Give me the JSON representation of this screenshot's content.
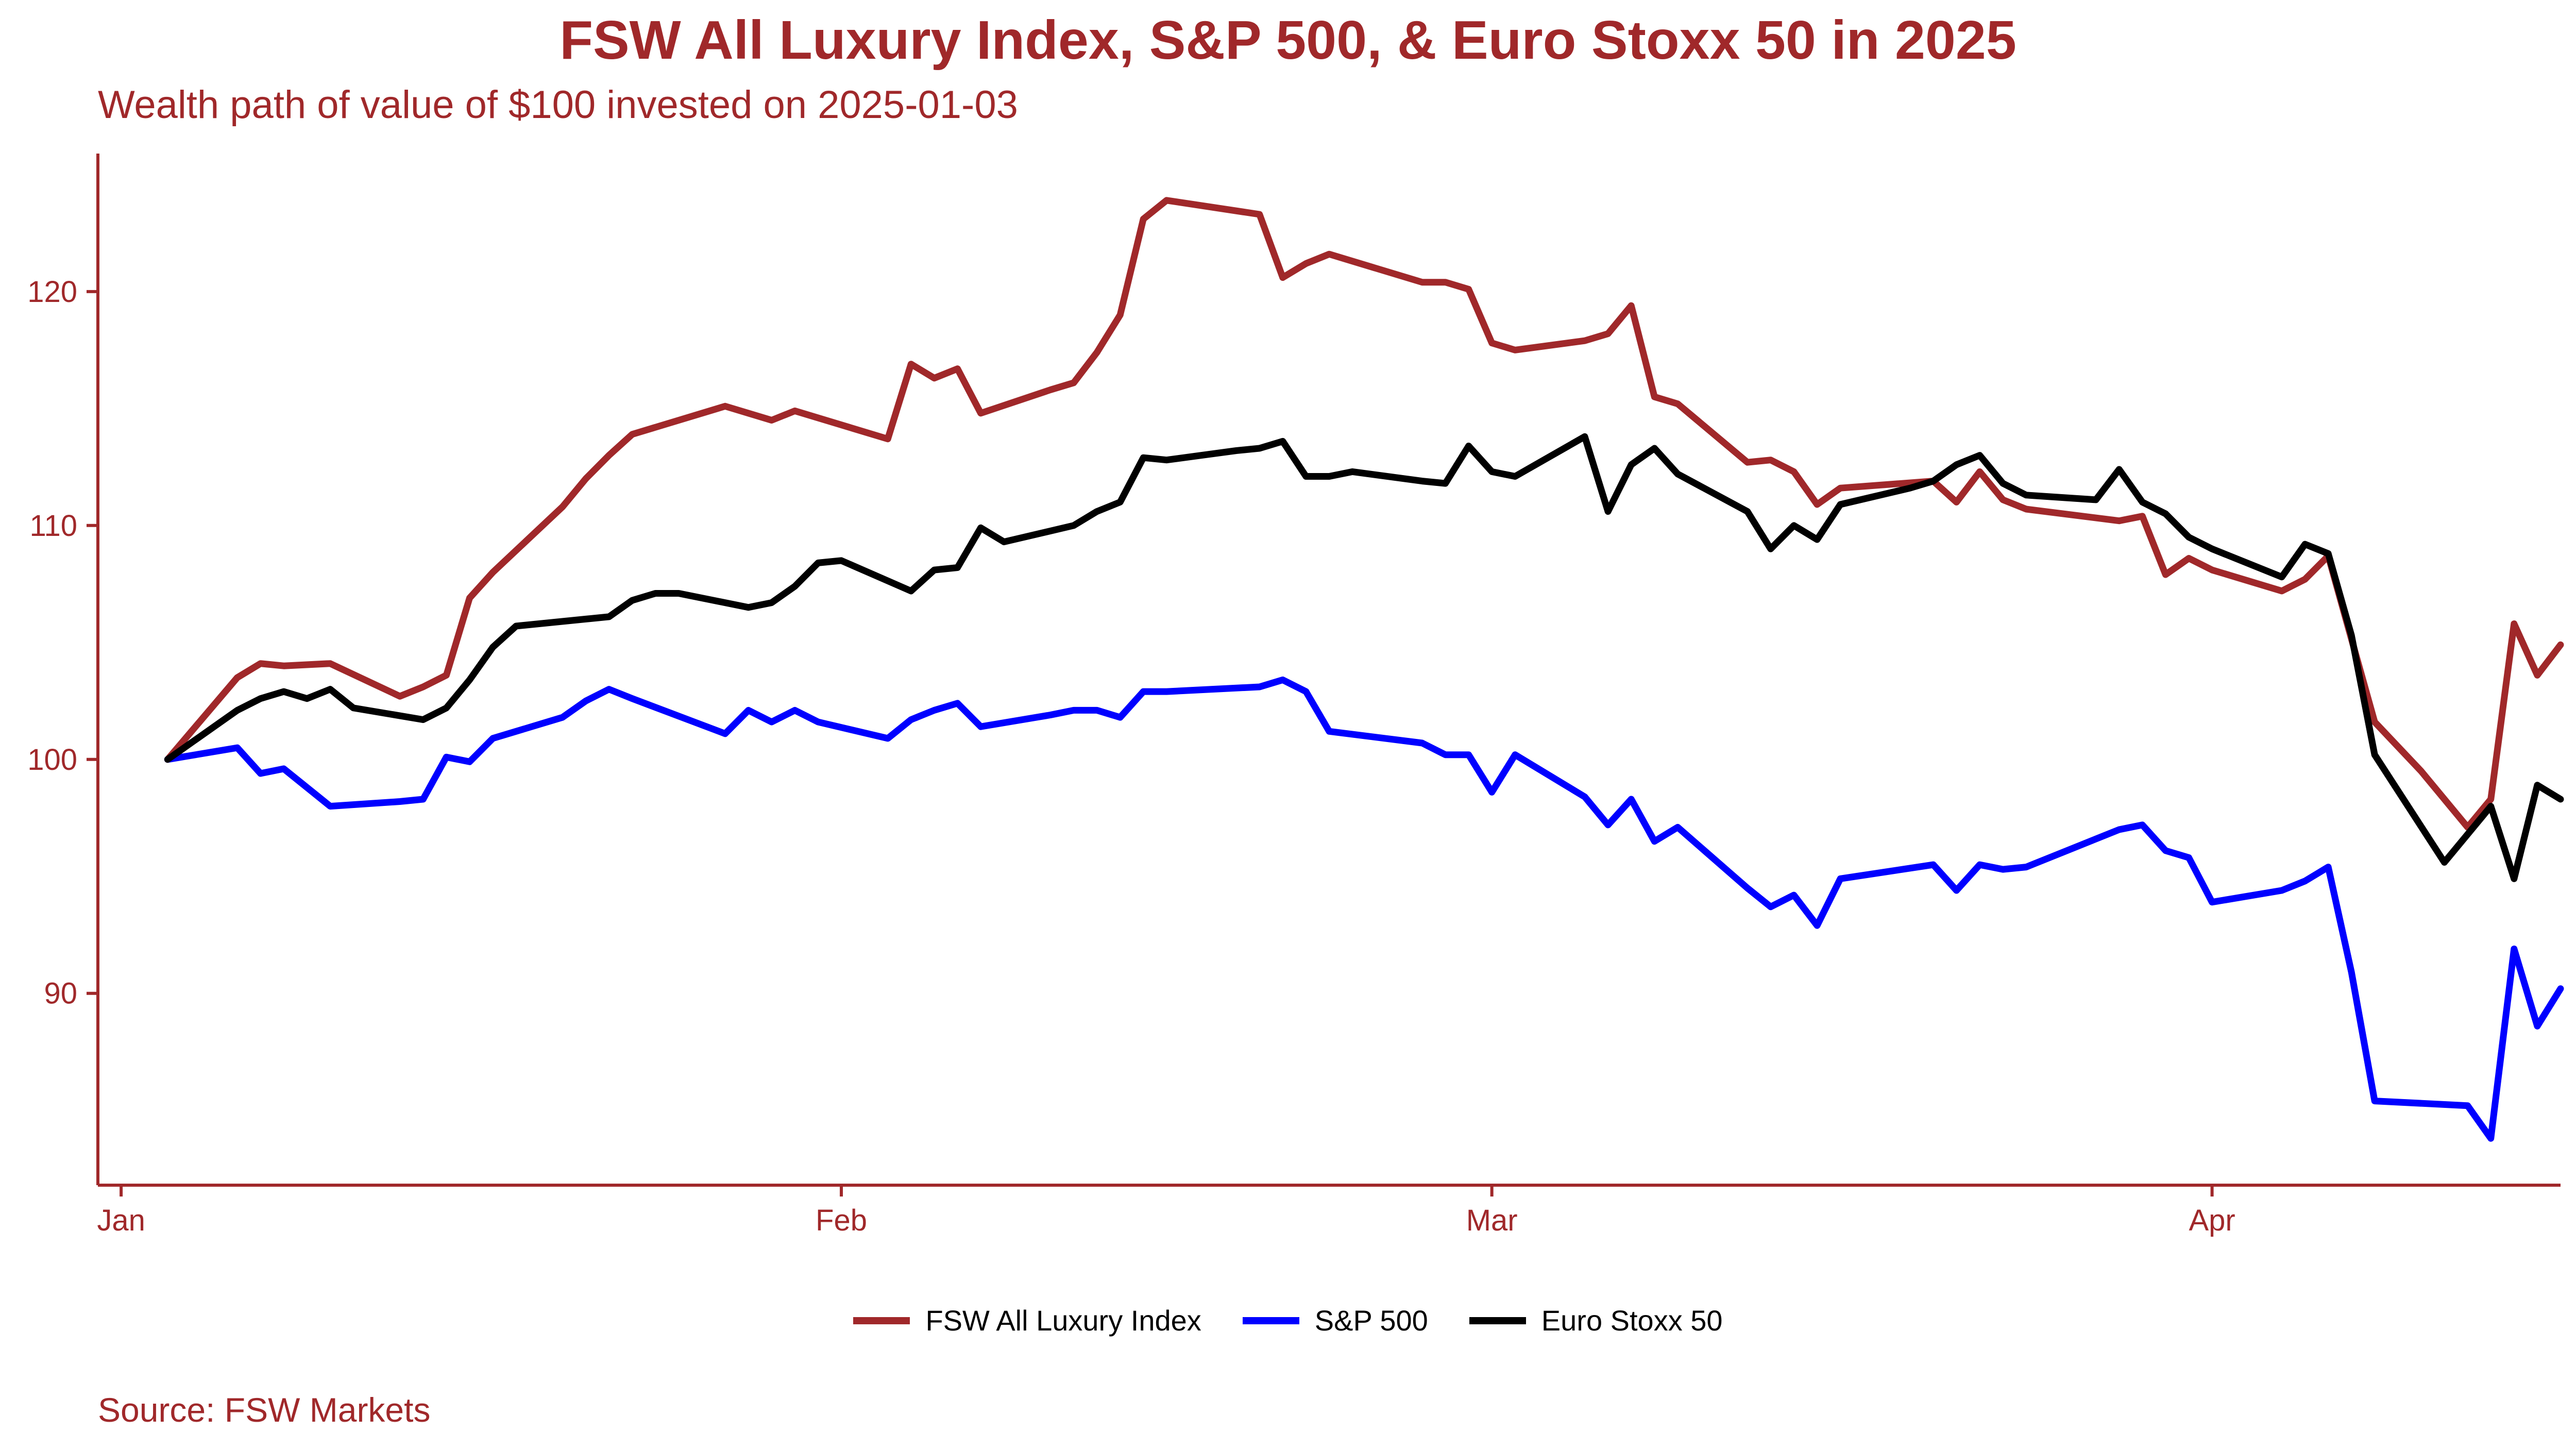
{
  "chart_data": {
    "type": "line",
    "title": "FSW All Luxury Index, S&P 500, & Euro Stoxx 50 in 2025",
    "subtitle": "Wealth path of value of $100 invested on 2025-01-03",
    "source": "Source: FSW Markets",
    "xlabel": "",
    "ylabel": "",
    "xlim": [
      "2024-12-31",
      "2025-04-16"
    ],
    "ylim": [
      81.8,
      125.9
    ],
    "x_ticks": [
      {
        "date": "2025-01-01",
        "label": "Jan"
      },
      {
        "date": "2025-02-01",
        "label": "Feb"
      },
      {
        "date": "2025-03-01",
        "label": "Mar"
      },
      {
        "date": "2025-04-01",
        "label": "Apr"
      }
    ],
    "y_ticks": [
      90,
      100,
      110,
      120
    ],
    "grid": false,
    "legend_position": "bottom",
    "series": [
      {
        "name": "FSW All Luxury Index",
        "color": "#a0282a",
        "points": [
          [
            "2025-01-03",
            100.0
          ],
          [
            "2025-01-06",
            103.5
          ],
          [
            "2025-01-07",
            104.1
          ],
          [
            "2025-01-08",
            104.0
          ],
          [
            "2025-01-10",
            104.1
          ],
          [
            "2025-01-13",
            102.7
          ],
          [
            "2025-01-14",
            103.1
          ],
          [
            "2025-01-15",
            103.6
          ],
          [
            "2025-01-16",
            106.9
          ],
          [
            "2025-01-17",
            108.0
          ],
          [
            "2025-01-20",
            110.8
          ],
          [
            "2025-01-21",
            112.0
          ],
          [
            "2025-01-22",
            113.0
          ],
          [
            "2025-01-23",
            113.9
          ],
          [
            "2025-01-27",
            115.1
          ],
          [
            "2025-01-29",
            114.5
          ],
          [
            "2025-01-30",
            114.9
          ],
          [
            "2025-02-03",
            113.7
          ],
          [
            "2025-02-04",
            116.9
          ],
          [
            "2025-02-05",
            116.3
          ],
          [
            "2025-02-06",
            116.7
          ],
          [
            "2025-02-07",
            114.8
          ],
          [
            "2025-02-10",
            115.8
          ],
          [
            "2025-02-11",
            116.1
          ],
          [
            "2025-02-12",
            117.4
          ],
          [
            "2025-02-13",
            119.0
          ],
          [
            "2025-02-14",
            123.1
          ],
          [
            "2025-02-15",
            123.9
          ],
          [
            "2025-02-19",
            123.3
          ],
          [
            "2025-02-20",
            120.6
          ],
          [
            "2025-02-21",
            121.2
          ],
          [
            "2025-02-22",
            121.6
          ],
          [
            "2025-02-26",
            120.4
          ],
          [
            "2025-02-27",
            120.4
          ],
          [
            "2025-02-28",
            120.1
          ],
          [
            "2025-03-01",
            117.8
          ],
          [
            "2025-03-02",
            117.5
          ],
          [
            "2025-03-05",
            117.9
          ],
          [
            "2025-03-06",
            118.2
          ],
          [
            "2025-03-07",
            119.4
          ],
          [
            "2025-03-08",
            115.5
          ],
          [
            "2025-03-09",
            115.2
          ],
          [
            "2025-03-12",
            112.7
          ],
          [
            "2025-03-13",
            112.8
          ],
          [
            "2025-03-14",
            112.3
          ],
          [
            "2025-03-15",
            110.9
          ],
          [
            "2025-03-16",
            111.6
          ],
          [
            "2025-03-20",
            111.9
          ],
          [
            "2025-03-21",
            111.0
          ],
          [
            "2025-03-22",
            112.3
          ],
          [
            "2025-03-23",
            111.1
          ],
          [
            "2025-03-24",
            110.7
          ],
          [
            "2025-03-28",
            110.2
          ],
          [
            "2025-03-29",
            110.4
          ],
          [
            "2025-03-30",
            107.9
          ],
          [
            "2025-03-31",
            108.6
          ],
          [
            "2025-04-01",
            108.1
          ],
          [
            "2025-04-04",
            107.2
          ],
          [
            "2025-04-05",
            107.7
          ],
          [
            "2025-04-06",
            108.7
          ],
          [
            "2025-04-08",
            101.6
          ],
          [
            "2025-04-10",
            99.5
          ],
          [
            "2025-04-12",
            97.1
          ],
          [
            "2025-04-13",
            98.3
          ],
          [
            "2025-04-14",
            105.8
          ],
          [
            "2025-04-15",
            103.6
          ],
          [
            "2025-04-16",
            104.9
          ]
        ]
      },
      {
        "name": "S&P 500",
        "color": "#0000ff",
        "points": [
          [
            "2025-01-03",
            100.0
          ],
          [
            "2025-01-06",
            100.5
          ],
          [
            "2025-01-07",
            99.4
          ],
          [
            "2025-01-08",
            99.6
          ],
          [
            "2025-01-10",
            98.0
          ],
          [
            "2025-01-13",
            98.2
          ],
          [
            "2025-01-14",
            98.3
          ],
          [
            "2025-01-15",
            100.1
          ],
          [
            "2025-01-16",
            99.9
          ],
          [
            "2025-01-17",
            100.9
          ],
          [
            "2025-01-20",
            101.8
          ],
          [
            "2025-01-21",
            102.5
          ],
          [
            "2025-01-22",
            103.0
          ],
          [
            "2025-01-23",
            102.6
          ],
          [
            "2025-01-27",
            101.1
          ],
          [
            "2025-01-28",
            102.1
          ],
          [
            "2025-01-29",
            101.6
          ],
          [
            "2025-01-30",
            102.1
          ],
          [
            "2025-01-31",
            101.6
          ],
          [
            "2025-02-03",
            100.9
          ],
          [
            "2025-02-04",
            101.7
          ],
          [
            "2025-02-05",
            102.1
          ],
          [
            "2025-02-06",
            102.4
          ],
          [
            "2025-02-07",
            101.4
          ],
          [
            "2025-02-10",
            101.9
          ],
          [
            "2025-02-11",
            102.1
          ],
          [
            "2025-02-12",
            102.1
          ],
          [
            "2025-02-13",
            101.8
          ],
          [
            "2025-02-14",
            102.9
          ],
          [
            "2025-02-15",
            102.9
          ],
          [
            "2025-02-19",
            103.1
          ],
          [
            "2025-02-20",
            103.4
          ],
          [
            "2025-02-21",
            102.9
          ],
          [
            "2025-02-22",
            101.2
          ],
          [
            "2025-02-26",
            100.7
          ],
          [
            "2025-02-27",
            100.2
          ],
          [
            "2025-02-28",
            100.2
          ],
          [
            "2025-03-01",
            98.6
          ],
          [
            "2025-03-02",
            100.2
          ],
          [
            "2025-03-05",
            98.4
          ],
          [
            "2025-03-06",
            97.2
          ],
          [
            "2025-03-07",
            98.3
          ],
          [
            "2025-03-08",
            96.5
          ],
          [
            "2025-03-09",
            97.1
          ],
          [
            "2025-03-12",
            94.5
          ],
          [
            "2025-03-13",
            93.7
          ],
          [
            "2025-03-14",
            94.2
          ],
          [
            "2025-03-15",
            92.9
          ],
          [
            "2025-03-16",
            94.9
          ],
          [
            "2025-03-20",
            95.5
          ],
          [
            "2025-03-21",
            94.4
          ],
          [
            "2025-03-22",
            95.5
          ],
          [
            "2025-03-23",
            95.3
          ],
          [
            "2025-03-24",
            95.4
          ],
          [
            "2025-03-28",
            97.0
          ],
          [
            "2025-03-29",
            97.2
          ],
          [
            "2025-03-30",
            96.1
          ],
          [
            "2025-03-31",
            95.8
          ],
          [
            "2025-04-01",
            93.9
          ],
          [
            "2025-04-04",
            94.4
          ],
          [
            "2025-04-05",
            94.8
          ],
          [
            "2025-04-06",
            95.4
          ],
          [
            "2025-04-07",
            90.9
          ],
          [
            "2025-04-08",
            85.4
          ],
          [
            "2025-04-12",
            85.2
          ],
          [
            "2025-04-13",
            83.8
          ],
          [
            "2025-04-14",
            91.9
          ],
          [
            "2025-04-15",
            88.6
          ],
          [
            "2025-04-16",
            90.2
          ]
        ]
      },
      {
        "name": "Euro Stoxx 50",
        "color": "#000000",
        "points": [
          [
            "2025-01-03",
            100.0
          ],
          [
            "2025-01-06",
            102.1
          ],
          [
            "2025-01-07",
            102.6
          ],
          [
            "2025-01-08",
            102.9
          ],
          [
            "2025-01-09",
            102.6
          ],
          [
            "2025-01-10",
            103.0
          ],
          [
            "2025-01-11",
            102.2
          ],
          [
            "2025-01-14",
            101.7
          ],
          [
            "2025-01-15",
            102.2
          ],
          [
            "2025-01-16",
            103.4
          ],
          [
            "2025-01-17",
            104.8
          ],
          [
            "2025-01-18",
            105.7
          ],
          [
            "2025-01-21",
            106.0
          ],
          [
            "2025-01-22",
            106.1
          ],
          [
            "2025-01-23",
            106.8
          ],
          [
            "2025-01-24",
            107.1
          ],
          [
            "2025-01-25",
            107.1
          ],
          [
            "2025-01-28",
            106.5
          ],
          [
            "2025-01-29",
            106.7
          ],
          [
            "2025-01-30",
            107.4
          ],
          [
            "2025-01-31",
            108.4
          ],
          [
            "2025-02-01",
            108.5
          ],
          [
            "2025-02-04",
            107.2
          ],
          [
            "2025-02-05",
            108.1
          ],
          [
            "2025-02-06",
            108.2
          ],
          [
            "2025-02-07",
            109.9
          ],
          [
            "2025-02-08",
            109.3
          ],
          [
            "2025-02-11",
            110.0
          ],
          [
            "2025-02-12",
            110.6
          ],
          [
            "2025-02-13",
            111.0
          ],
          [
            "2025-02-14",
            112.9
          ],
          [
            "2025-02-15",
            112.8
          ],
          [
            "2025-02-18",
            113.2
          ],
          [
            "2025-02-19",
            113.3
          ],
          [
            "2025-02-20",
            113.6
          ],
          [
            "2025-02-21",
            112.1
          ],
          [
            "2025-02-22",
            112.1
          ],
          [
            "2025-02-23",
            112.3
          ],
          [
            "2025-02-26",
            111.9
          ],
          [
            "2025-02-27",
            111.8
          ],
          [
            "2025-02-28",
            113.4
          ],
          [
            "2025-03-01",
            112.3
          ],
          [
            "2025-03-02",
            112.1
          ],
          [
            "2025-03-05",
            113.8
          ],
          [
            "2025-03-06",
            110.6
          ],
          [
            "2025-03-07",
            112.6
          ],
          [
            "2025-03-08",
            113.3
          ],
          [
            "2025-03-09",
            112.2
          ],
          [
            "2025-03-12",
            110.6
          ],
          [
            "2025-03-13",
            109.0
          ],
          [
            "2025-03-14",
            110.0
          ],
          [
            "2025-03-15",
            109.4
          ],
          [
            "2025-03-16",
            110.9
          ],
          [
            "2025-03-19",
            111.6
          ],
          [
            "2025-03-20",
            111.9
          ],
          [
            "2025-03-21",
            112.6
          ],
          [
            "2025-03-22",
            113.0
          ],
          [
            "2025-03-23",
            111.8
          ],
          [
            "2025-03-24",
            111.3
          ],
          [
            "2025-03-27",
            111.1
          ],
          [
            "2025-03-28",
            112.4
          ],
          [
            "2025-03-29",
            111.0
          ],
          [
            "2025-03-30",
            110.5
          ],
          [
            "2025-03-31",
            109.5
          ],
          [
            "2025-04-01",
            109.0
          ],
          [
            "2025-04-04",
            107.8
          ],
          [
            "2025-04-05",
            109.2
          ],
          [
            "2025-04-06",
            108.8
          ],
          [
            "2025-04-07",
            105.3
          ],
          [
            "2025-04-08",
            100.2
          ],
          [
            "2025-04-11",
            95.6
          ],
          [
            "2025-04-13",
            98.0
          ],
          [
            "2025-04-14",
            94.9
          ],
          [
            "2025-04-15",
            98.9
          ],
          [
            "2025-04-16",
            98.3
          ]
        ]
      }
    ]
  },
  "theme": {
    "accent": "#a0282a",
    "background": "#ffffff",
    "text_dark": "#000000"
  }
}
